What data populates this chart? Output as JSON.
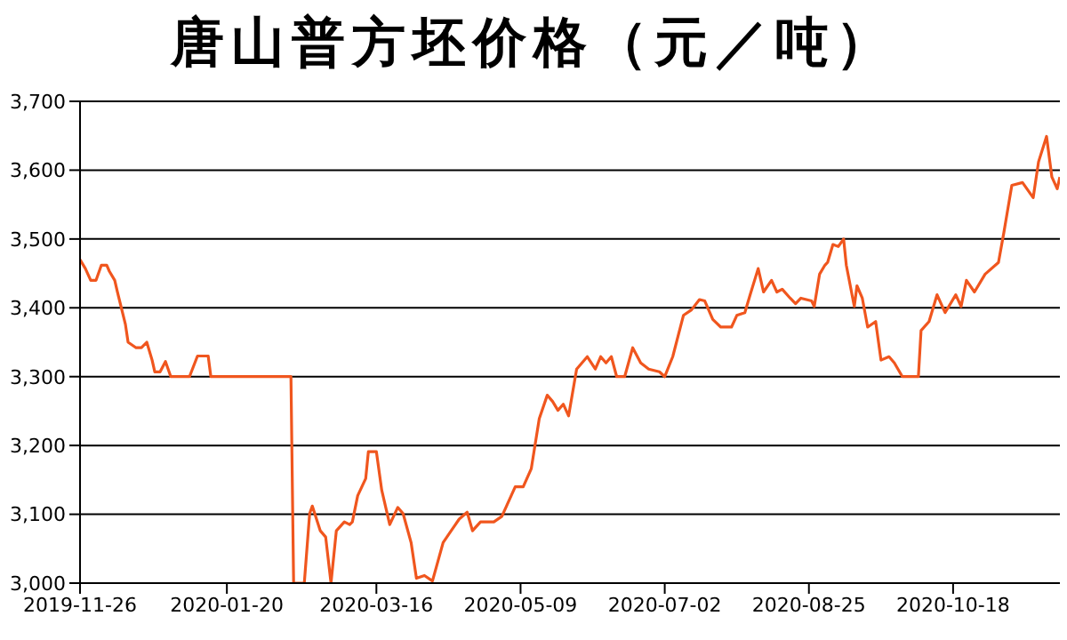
{
  "chart_data": {
    "type": "line",
    "title": "唐山普方坯价格（元／吨）",
    "x": [
      "2019-11-26",
      "2019-11-28",
      "2019-11-30",
      "2019-12-02",
      "2019-12-04",
      "2019-12-06",
      "2019-12-07",
      "2019-12-09",
      "2019-12-10",
      "2019-12-13",
      "2019-12-14",
      "2019-12-17",
      "2019-12-19",
      "2019-12-21",
      "2019-12-23",
      "2019-12-24",
      "2019-12-26",
      "2019-12-28",
      "2019-12-30",
      "2020-01-06",
      "2020-01-09",
      "2020-01-13",
      "2020-01-14",
      "2020-02-13",
      "2020-02-14",
      "2020-02-18",
      "2020-02-20",
      "2020-02-21",
      "2020-02-24",
      "2020-02-26",
      "2020-02-28",
      "2020-03-01",
      "2020-03-04",
      "2020-03-06",
      "2020-03-07",
      "2020-03-09",
      "2020-03-12",
      "2020-03-13",
      "2020-03-16",
      "2020-03-18",
      "2020-03-21",
      "2020-03-24",
      "2020-03-26",
      "2020-03-29",
      "2020-03-31",
      "2020-04-03",
      "2020-04-06",
      "2020-04-10",
      "2020-04-13",
      "2020-04-16",
      "2020-04-19",
      "2020-04-21",
      "2020-04-24",
      "2020-04-29",
      "2020-05-02",
      "2020-05-07",
      "2020-05-10",
      "2020-05-13",
      "2020-05-16",
      "2020-05-19",
      "2020-05-21",
      "2020-05-23",
      "2020-05-25",
      "2020-05-27",
      "2020-05-30",
      "2020-06-03",
      "2020-06-06",
      "2020-06-08",
      "2020-06-10",
      "2020-06-12",
      "2020-06-14",
      "2020-06-17",
      "2020-06-20",
      "2020-06-23",
      "2020-06-26",
      "2020-06-30",
      "2020-07-02",
      "2020-07-05",
      "2020-07-09",
      "2020-07-12",
      "2020-07-15",
      "2020-07-17",
      "2020-07-20",
      "2020-07-23",
      "2020-07-27",
      "2020-07-29",
      "2020-08-01",
      "2020-08-03",
      "2020-08-06",
      "2020-08-08",
      "2020-08-11",
      "2020-08-13",
      "2020-08-15",
      "2020-08-18",
      "2020-08-20",
      "2020-08-22",
      "2020-08-26",
      "2020-08-27",
      "2020-08-29",
      "2020-08-31",
      "2020-09-01",
      "2020-09-03",
      "2020-09-05",
      "2020-09-07",
      "2020-09-08",
      "2020-09-11",
      "2020-09-12",
      "2020-09-14",
      "2020-09-16",
      "2020-09-19",
      "2020-09-21",
      "2020-09-24",
      "2020-09-26",
      "2020-09-29",
      "2020-10-05",
      "2020-10-06",
      "2020-10-09",
      "2020-10-12",
      "2020-10-15",
      "2020-10-19",
      "2020-10-21",
      "2020-10-23",
      "2020-10-26",
      "2020-10-30",
      "2020-11-04",
      "2020-11-06",
      "2020-11-09",
      "2020-11-13",
      "2020-11-17",
      "2020-11-19",
      "2020-11-22",
      "2020-11-24",
      "2020-11-26",
      "2020-11-27"
    ],
    "series": [
      {
        "color": "#f0561e",
        "values": [
          3470,
          3457,
          3440,
          3440,
          3462,
          3462,
          3453,
          3440,
          3423,
          3376,
          3350,
          3342,
          3342,
          3350,
          3324,
          3307,
          3307,
          3322,
          3300,
          3300,
          3330,
          3330,
          3300,
          3300,
          3000,
          3000,
          3101,
          3112,
          3076,
          3067,
          3000,
          3076,
          3089,
          3085,
          3089,
          3127,
          3152,
          3191,
          3191,
          3135,
          3085,
          3110,
          3101,
          3059,
          3007,
          3011,
          3003,
          3059,
          3076,
          3093,
          3103,
          3076,
          3089,
          3089,
          3097,
          3140,
          3140,
          3166,
          3239,
          3273,
          3264,
          3251,
          3260,
          3243,
          3311,
          3329,
          3311,
          3329,
          3320,
          3329,
          3300,
          3300,
          3342,
          3320,
          3311,
          3307,
          3300,
          3329,
          3389,
          3397,
          3412,
          3410,
          3383,
          3372,
          3372,
          3389,
          3393,
          3419,
          3457,
          3423,
          3440,
          3423,
          3427,
          3414,
          3406,
          3414,
          3410,
          3402,
          3449,
          3462,
          3466,
          3492,
          3489,
          3500,
          3462,
          3402,
          3432,
          3414,
          3372,
          3380,
          3324,
          3329,
          3320,
          3300,
          3300,
          3367,
          3380,
          3419,
          3393,
          3419,
          3402,
          3440,
          3423,
          3449,
          3466,
          3509,
          3578,
          3582,
          3560,
          3612,
          3649,
          3590,
          3573,
          3590
        ]
      }
    ],
    "xlim": [
      "2019-11-26",
      "2020-11-27"
    ],
    "xticks": [
      "2019-11-26",
      "2020-01-20",
      "2020-03-16",
      "2020-05-09",
      "2020-07-02",
      "2020-08-25",
      "2020-10-18"
    ],
    "ylim": [
      3000,
      3700
    ],
    "yticks": [
      {
        "value": 3000,
        "label": "3,000"
      },
      {
        "value": 3100,
        "label": "3,100"
      },
      {
        "value": 3200,
        "label": "3,200"
      },
      {
        "value": 3300,
        "label": "3,300"
      },
      {
        "value": 3400,
        "label": "3,400"
      },
      {
        "value": 3500,
        "label": "3,500"
      },
      {
        "value": 3600,
        "label": "3,600"
      },
      {
        "value": 3700,
        "label": "3,700"
      }
    ],
    "grid": "y",
    "marker": "none",
    "line_style": "solid"
  }
}
